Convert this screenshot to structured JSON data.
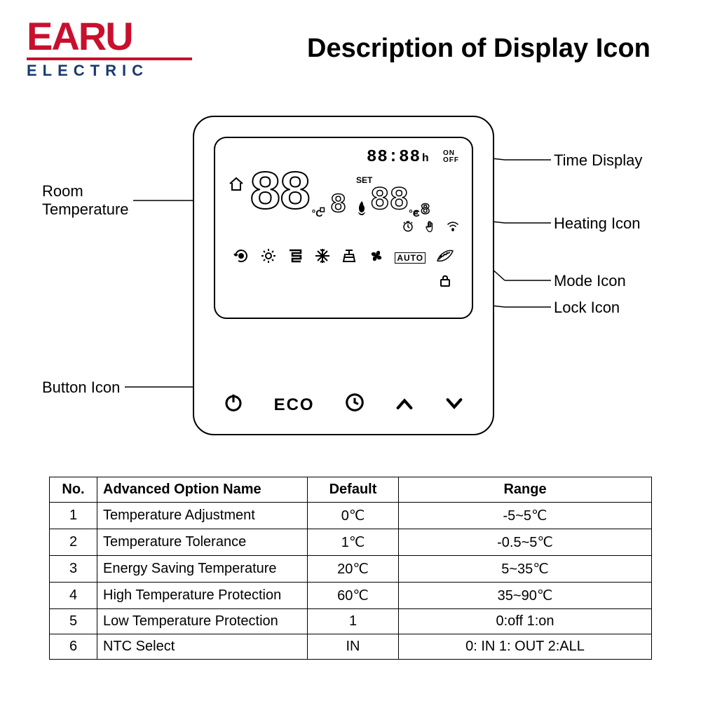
{
  "brand": {
    "top": "EARU",
    "bottom": "ELECTRIC"
  },
  "title": "Description of Display Icon",
  "callouts": {
    "room_temp": "Room\nTemperature",
    "button_icon": "Button Icon",
    "time_display": "Time Display",
    "heating_icon": "Heating Icon",
    "mode_icon": "Mode Icon",
    "lock_icon": "Lock Icon"
  },
  "display": {
    "time": "88:88",
    "time_unit": "h",
    "on": "ON",
    "off": "OFF",
    "big": "88",
    "big_dec": ".8",
    "set_label": "SET",
    "set_big": "88",
    "set_dec": ".8",
    "degc": "°C",
    "auto": "AUTO"
  },
  "buttons": {
    "eco": "ECO"
  },
  "table": {
    "headers": [
      "No.",
      "Advanced Option Name",
      "Default",
      "Range"
    ],
    "rows": [
      [
        "1",
        "Temperature Adjustment",
        "0℃",
        "-5~5℃"
      ],
      [
        "2",
        "Temperature Tolerance",
        "1℃",
        "-0.5~5℃"
      ],
      [
        "3",
        "Energy Saving Temperature",
        "20℃",
        "5~35℃"
      ],
      [
        "4",
        "High Temperature Protection",
        "60℃",
        "35~90℃"
      ],
      [
        "5",
        "Low Temperature Protection",
        "1",
        "0:off  1:on"
      ],
      [
        "6",
        "NTC Select",
        "IN",
        "0: IN  1: OUT  2:ALL"
      ]
    ]
  }
}
